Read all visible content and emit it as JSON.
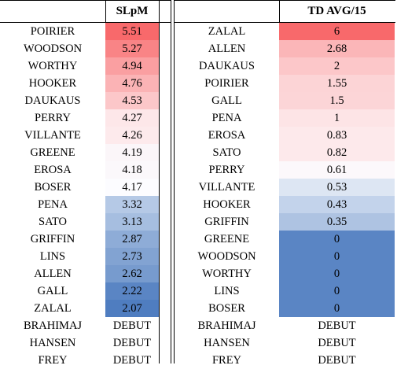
{
  "left": {
    "header": "SLpM",
    "rows": [
      {
        "name": "POIRIER",
        "value": "5.51",
        "color": "#f8696b"
      },
      {
        "name": "WOODSON",
        "value": "5.27",
        "color": "#f98486"
      },
      {
        "name": "WORTHY",
        "value": "4.94",
        "color": "#fa9fa1"
      },
      {
        "name": "HOOKER",
        "value": "4.76",
        "color": "#fbb3b5"
      },
      {
        "name": "DAUKAUS",
        "value": "4.53",
        "color": "#fcc7c9"
      },
      {
        "name": "PERRY",
        "value": "4.27",
        "color": "#fde7e9"
      },
      {
        "name": "VILLANTE",
        "value": "4.26",
        "color": "#fdeaec"
      },
      {
        "name": "GREENE",
        "value": "4.19",
        "color": "#fbf6f9"
      },
      {
        "name": "EROSA",
        "value": "4.18",
        "color": "#fbf8fb"
      },
      {
        "name": "BOSER",
        "value": "4.17",
        "color": "#fcfcff"
      },
      {
        "name": "PENA",
        "value": "3.32",
        "color": "#b5c9e6"
      },
      {
        "name": "SATO",
        "value": "3.13",
        "color": "#a6bee0"
      },
      {
        "name": "GRIFFIN",
        "value": "2.87",
        "color": "#8eacd7"
      },
      {
        "name": "LINS",
        "value": "2.73",
        "color": "#82a3d2"
      },
      {
        "name": "ALLEN",
        "value": "2.62",
        "color": "#779bce"
      },
      {
        "name": "GALL",
        "value": "2.22",
        "color": "#5a85c4"
      },
      {
        "name": "ZALAL",
        "value": "2.07",
        "color": "#4f7dc0"
      },
      {
        "name": "BRAHIMAJ",
        "value": "DEBUT",
        "color": "#ffffff"
      },
      {
        "name": "HANSEN",
        "value": "DEBUT",
        "color": "#ffffff"
      },
      {
        "name": "FREY",
        "value": "DEBUT",
        "color": "#ffffff"
      }
    ]
  },
  "right": {
    "header": "TD AVG/15",
    "rows": [
      {
        "name": "ZALAL",
        "value": "6",
        "color": "#f8696b"
      },
      {
        "name": "ALLEN",
        "value": "2.68",
        "color": "#fbb6b8"
      },
      {
        "name": "DAUKAUS",
        "value": "2",
        "color": "#fcc7c9"
      },
      {
        "name": "POIRIER",
        "value": "1.55",
        "color": "#fcd4d6"
      },
      {
        "name": "GALL",
        "value": "1.5",
        "color": "#fcd5d7"
      },
      {
        "name": "PENA",
        "value": "1",
        "color": "#fde4e6"
      },
      {
        "name": "EROSA",
        "value": "0.83",
        "color": "#fde9eb"
      },
      {
        "name": "SATO",
        "value": "0.82",
        "color": "#fde9eb"
      },
      {
        "name": "PERRY",
        "value": "0.61",
        "color": "#fcf8fb"
      },
      {
        "name": "VILLANTE",
        "value": "0.53",
        "color": "#dde6f3"
      },
      {
        "name": "HOOKER",
        "value": "0.43",
        "color": "#c3d3eb"
      },
      {
        "name": "GRIFFIN",
        "value": "0.35",
        "color": "#aec3e2"
      },
      {
        "name": "GREENE",
        "value": "0",
        "color": "#5a85c4"
      },
      {
        "name": "WOODSON",
        "value": "0",
        "color": "#5a85c4"
      },
      {
        "name": "WORTHY",
        "value": "0",
        "color": "#5a85c4"
      },
      {
        "name": "LINS",
        "value": "0",
        "color": "#5a85c4"
      },
      {
        "name": "BOSER",
        "value": "0",
        "color": "#5a85c4"
      },
      {
        "name": "BRAHIMAJ",
        "value": "DEBUT",
        "color": "#ffffff"
      },
      {
        "name": "HANSEN",
        "value": "DEBUT",
        "color": "#ffffff"
      },
      {
        "name": "FREY",
        "value": "DEBUT",
        "color": "#ffffff"
      }
    ]
  }
}
